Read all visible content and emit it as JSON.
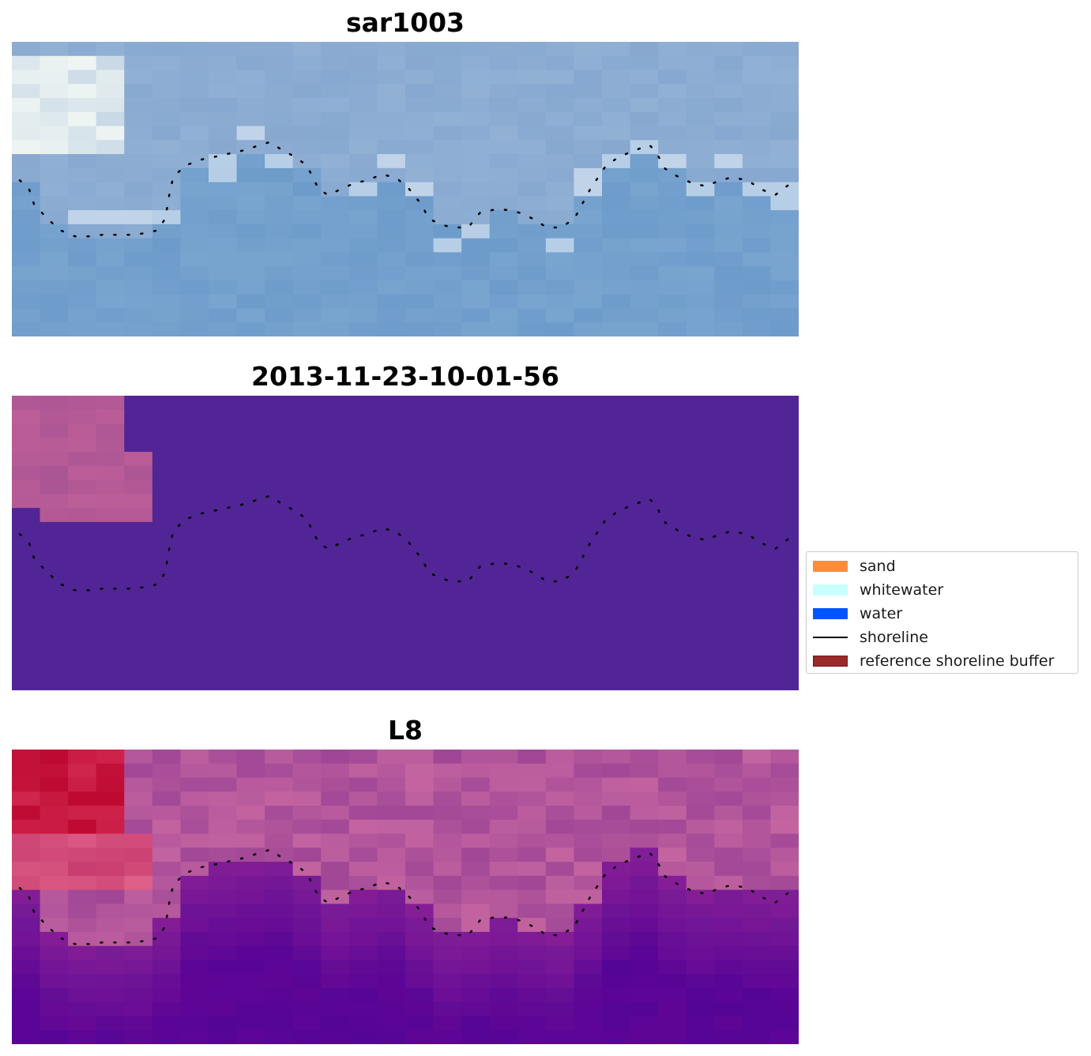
{
  "chart_data": [
    {
      "type": "heatmap",
      "title": "sar1003",
      "grid_size": [
        28,
        21
      ],
      "colormap": "Blues",
      "axes_visible": false,
      "description_hint": "pixel-based satellite image, light blue tones, lighter whitewater near top-left"
    },
    {
      "type": "heatmap",
      "title": "2013-11-23-10-01-56",
      "grid_size": [
        28,
        21
      ],
      "colormap": "Plasma-like classification",
      "axes_visible": false
    },
    {
      "type": "heatmap",
      "title": "L8",
      "grid_size": [
        28,
        21
      ],
      "colormap": "RdPu/magenta",
      "axes_visible": false
    }
  ],
  "legend": {
    "placement": "center-right",
    "items": [
      {
        "label": "sand",
        "color": "#ff8c3a",
        "kind": "patch"
      },
      {
        "label": "whitewater",
        "color": "#c8ffff",
        "kind": "patch"
      },
      {
        "label": "water",
        "color": "#0055ff",
        "kind": "patch"
      },
      {
        "label": "shoreline",
        "color": "#000000",
        "kind": "line"
      },
      {
        "label": "reference shoreline buffer",
        "color": "#9a2a2a",
        "kind": "patch",
        "edge": "#7a1414"
      }
    ]
  },
  "shoreline": {
    "style": "dotted",
    "color": "#000000",
    "points_x_norm": [
      0.01,
      0.022,
      0.028,
      0.045,
      0.062,
      0.08,
      0.098,
      0.115,
      0.133,
      0.15,
      0.168,
      0.185,
      0.195,
      0.2,
      0.205,
      0.22,
      0.24,
      0.258,
      0.275,
      0.292,
      0.31,
      0.328,
      0.345,
      0.36,
      0.375,
      0.39,
      0.402,
      0.418,
      0.435,
      0.452,
      0.47,
      0.488,
      0.505,
      0.52,
      0.53,
      0.545,
      0.56,
      0.58,
      0.595,
      0.612,
      0.628,
      0.645,
      0.662,
      0.68,
      0.698,
      0.715,
      0.735,
      0.755,
      0.772,
      0.79,
      0.8,
      0.81,
      0.818,
      0.83,
      0.848,
      0.865,
      0.882,
      0.9,
      0.915,
      0.935,
      0.952,
      0.97,
      0.99
    ],
    "points_y_norm": [
      0.47,
      0.5,
      0.55,
      0.6,
      0.64,
      0.66,
      0.66,
      0.655,
      0.655,
      0.655,
      0.65,
      0.64,
      0.6,
      0.52,
      0.46,
      0.42,
      0.4,
      0.39,
      0.38,
      0.37,
      0.355,
      0.34,
      0.37,
      0.39,
      0.42,
      0.5,
      0.52,
      0.5,
      0.48,
      0.47,
      0.45,
      0.46,
      0.5,
      0.55,
      0.6,
      0.62,
      0.63,
      0.63,
      0.58,
      0.57,
      0.57,
      0.58,
      0.6,
      0.63,
      0.63,
      0.6,
      0.5,
      0.42,
      0.39,
      0.37,
      0.36,
      0.35,
      0.37,
      0.43,
      0.46,
      0.48,
      0.49,
      0.47,
      0.46,
      0.47,
      0.5,
      0.52,
      0.48
    ]
  }
}
